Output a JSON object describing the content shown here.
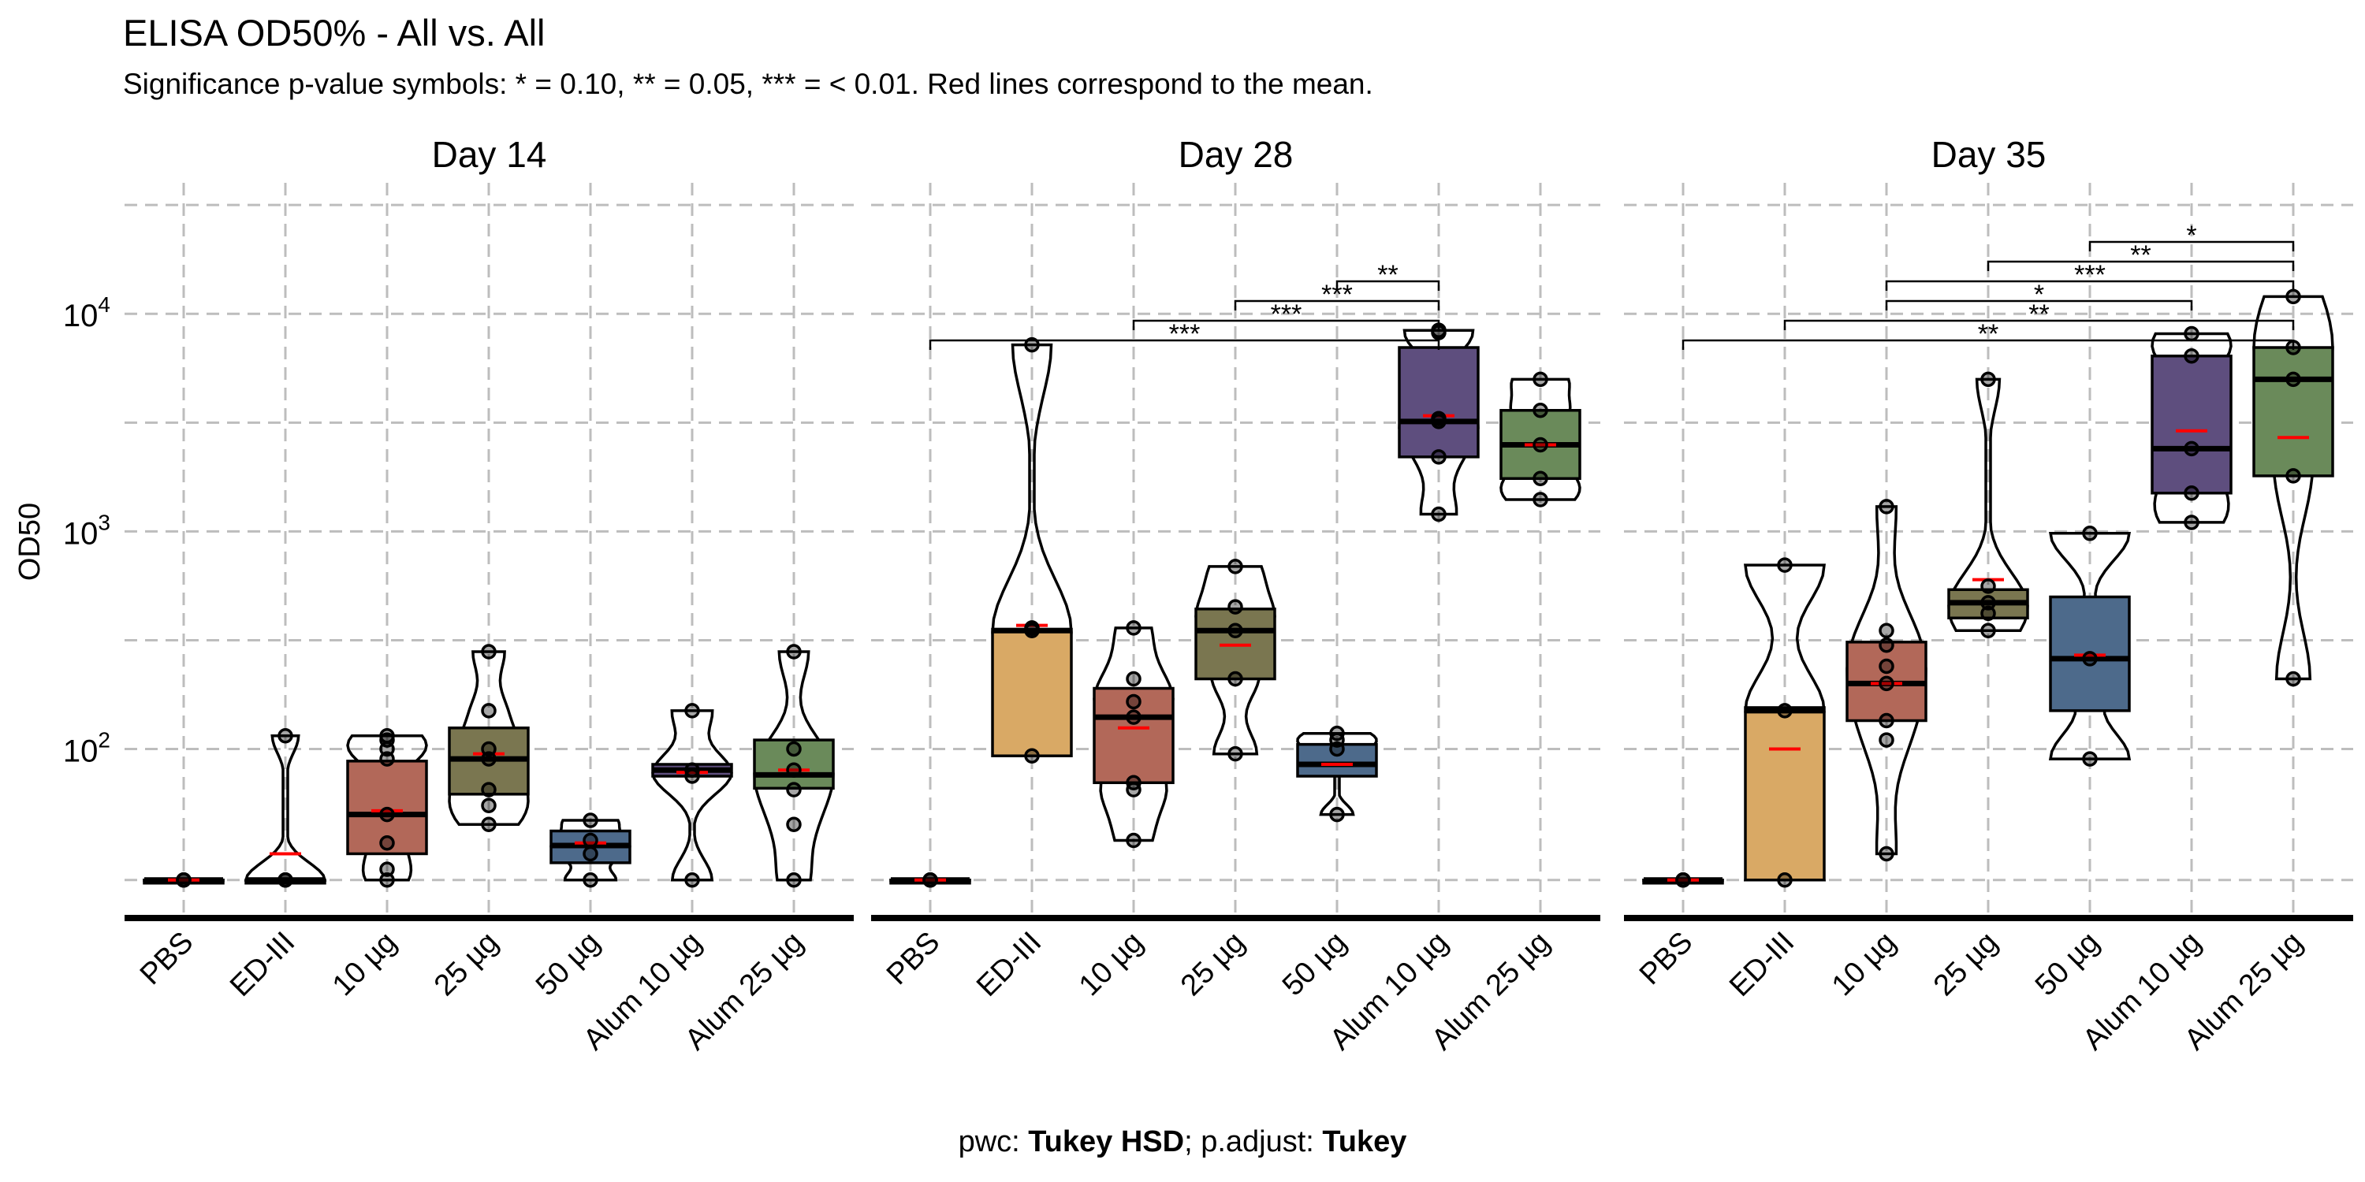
{
  "title": "ELISA OD50% - All vs. All",
  "subtitle": "Significance p-value symbols: * = 0.10, ** = 0.05, *** = < 0.01. Red lines correspond to the mean.",
  "caption": {
    "pwc_prefix": "pwc: ",
    "pwc_method": "Tukey HSD",
    "adjust_prefix": "; p.adjust: ",
    "adjust_method": "Tukey"
  },
  "chart_data": {
    "type": "box",
    "ylabel": "OD50",
    "yscale": "log10",
    "ylim": [
      17,
      40000
    ],
    "y_ticks": [
      {
        "value": 100,
        "base": "10",
        "exp": "2"
      },
      {
        "value": 1000,
        "base": "10",
        "exp": "3"
      },
      {
        "value": 10000,
        "base": "10",
        "exp": "4"
      }
    ],
    "grid": true,
    "categories": [
      "PBS",
      "ED-III",
      "10 µg",
      "25 µg",
      "50 µg",
      "Alum 10 µg",
      "Alum 25 µg"
    ],
    "colors": {
      "PBS": "#ffffff",
      "ED-III": "#D9A965",
      "10 µg": "#B26859",
      "25 µg": "#7A7650",
      "50 µg": "#4D6A8B",
      "Alum 10 µg": "#5E4E7E",
      "Alum 25 µg": "#6A8A5A"
    },
    "mean_color": "#FF0000",
    "facets": [
      {
        "label": "Day  14",
        "groups": [
          {
            "name": "PBS",
            "q1": 25,
            "median": 25,
            "q3": 25,
            "mean": 25,
            "points": [
              25,
              25,
              25
            ]
          },
          {
            "name": "ED-III",
            "q1": 25,
            "median": 25,
            "q3": 25,
            "mean": 33,
            "points": [
              25,
              25,
              25,
              115
            ]
          },
          {
            "name": "10 µg",
            "q1": 33,
            "median": 50,
            "q3": 88,
            "mean": 52,
            "points": [
              25,
              28,
              37,
              50,
              90,
              100,
              110,
              115
            ]
          },
          {
            "name": "25 µg",
            "q1": 62,
            "median": 90,
            "q3": 125,
            "mean": 95,
            "points": [
              45,
              55,
              65,
              90,
              100,
              150,
              280
            ]
          },
          {
            "name": "50 µg",
            "q1": 30,
            "median": 36,
            "q3": 42,
            "mean": 37,
            "points": [
              25,
              33,
              38,
              47
            ]
          },
          {
            "name": "Alum 10 µg",
            "q1": 75,
            "median": 80,
            "q3": 85,
            "mean": 78,
            "points": [
              25,
              75,
              80,
              150
            ]
          },
          {
            "name": "Alum 25 µg",
            "q1": 66,
            "median": 76,
            "q3": 110,
            "mean": 80,
            "points": [
              25,
              45,
              65,
              80,
              100,
              280
            ]
          }
        ],
        "comparisons": []
      },
      {
        "label": "Day  28",
        "groups": [
          {
            "name": "PBS",
            "q1": 25,
            "median": 25,
            "q3": 25,
            "mean": 25,
            "points": [
              25,
              25,
              25
            ]
          },
          {
            "name": "ED-III",
            "q1": 93,
            "median": 350,
            "q3": 355,
            "mean": 370,
            "points": [
              93,
              350,
              360,
              7200
            ]
          },
          {
            "name": "10 µg",
            "q1": 70,
            "median": 140,
            "q3": 190,
            "mean": 125,
            "points": [
              38,
              65,
              70,
              140,
              165,
              210,
              360
            ]
          },
          {
            "name": "25 µg",
            "q1": 210,
            "median": 350,
            "q3": 440,
            "mean": 300,
            "points": [
              95,
              210,
              350,
              450,
              690
            ]
          },
          {
            "name": "50 µg",
            "q1": 75,
            "median": 85,
            "q3": 105,
            "mean": 85,
            "points": [
              50,
              100,
              110,
              118
            ]
          },
          {
            "name": "Alum 10 µg",
            "q1": 2200,
            "median": 3200,
            "q3": 7000,
            "mean": 3400,
            "points": [
              1200,
              2200,
              3200,
              3300,
              8200,
              8400
            ]
          },
          {
            "name": "Alum 25 µg",
            "q1": 1750,
            "median": 2500,
            "q3": 3600,
            "mean": 2500,
            "points": [
              1400,
              1750,
              2500,
              3600,
              5000
            ]
          }
        ],
        "comparisons": [
          {
            "from": "PBS",
            "to": "Alum 10 µg",
            "label": "***",
            "level": 0
          },
          {
            "from": "10 µg",
            "to": "Alum 10 µg",
            "label": "***",
            "level": 1
          },
          {
            "from": "25 µg",
            "to": "Alum 10 µg",
            "label": "***",
            "level": 2
          },
          {
            "from": "50 µg",
            "to": "Alum 10 µg",
            "label": "**",
            "level": 3
          }
        ]
      },
      {
        "label": "Day  35",
        "groups": [
          {
            "name": "PBS",
            "q1": 25,
            "median": 25,
            "q3": 25,
            "mean": 25,
            "points": [
              25,
              25,
              25
            ]
          },
          {
            "name": "ED-III",
            "q1": 25,
            "median": 150,
            "q3": 155,
            "mean": 100,
            "points": [
              25,
              150,
              700
            ]
          },
          {
            "name": "10 µg",
            "q1": 135,
            "median": 200,
            "q3": 310,
            "mean": 200,
            "points": [
              33,
              110,
              135,
              200,
              240,
              300,
              350,
              1300
            ]
          },
          {
            "name": "25 µg",
            "q1": 400,
            "median": 470,
            "q3": 540,
            "mean": 600,
            "points": [
              350,
              420,
              470,
              560,
              5000
            ]
          },
          {
            "name": "50 µg",
            "q1": 150,
            "median": 260,
            "q3": 500,
            "mean": 270,
            "points": [
              90,
              260,
              980
            ]
          },
          {
            "name": "Alum 10 µg",
            "q1": 1500,
            "median": 2400,
            "q3": 6400,
            "mean": 2900,
            "points": [
              1100,
              1500,
              2400,
              6400,
              8100
            ]
          },
          {
            "name": "Alum 25 µg",
            "q1": 1800,
            "median": 5000,
            "q3": 7000,
            "mean": 2700,
            "points": [
              210,
              1800,
              5000,
              7000,
              12000
            ]
          }
        ],
        "comparisons": [
          {
            "from": "PBS",
            "to": "Alum 25 µg",
            "label": "**",
            "level": 0
          },
          {
            "from": "ED-III",
            "to": "Alum 25 µg",
            "label": "**",
            "level": 1
          },
          {
            "from": "10 µg",
            "to": "Alum 10 µg",
            "label": "*",
            "level": 2
          },
          {
            "from": "10 µg",
            "to": "Alum 25 µg",
            "label": "***",
            "level": 3
          },
          {
            "from": "25 µg",
            "to": "Alum 25 µg",
            "label": "**",
            "level": 4
          },
          {
            "from": "50 µg",
            "to": "Alum 25 µg",
            "label": "*",
            "level": 5
          }
        ]
      }
    ]
  }
}
